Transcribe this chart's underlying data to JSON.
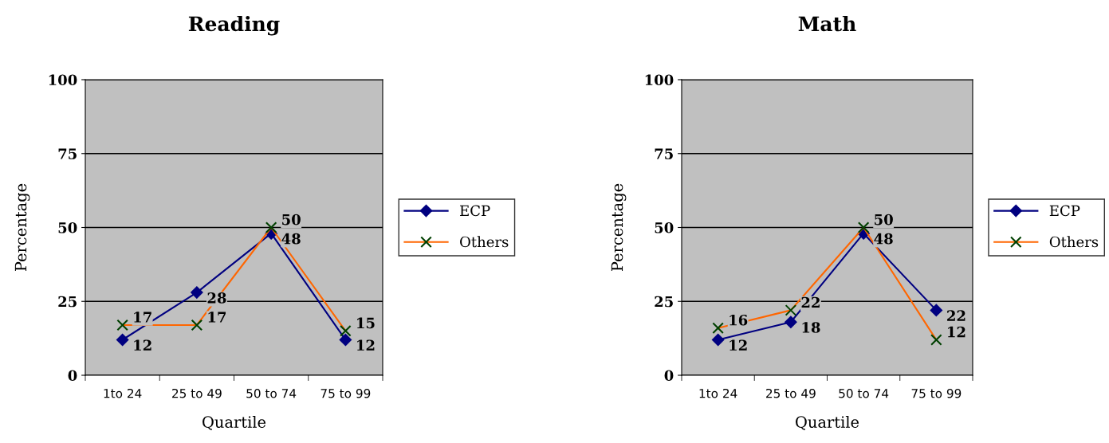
{
  "chart_data": [
    {
      "type": "line",
      "title": "Reading",
      "xlabel": "Quartile",
      "ylabel": "Percentage",
      "categories": [
        "1to 24",
        "25 to 49",
        "50 to 74",
        "75 to 99"
      ],
      "ylim": [
        0,
        100
      ],
      "yticks": [
        0,
        25,
        50,
        75,
        100
      ],
      "grid": "y",
      "legend": "right",
      "data_labels": true,
      "series": [
        {
          "name": "ECP",
          "color": "#000080",
          "marker": "diamond",
          "values": [
            12,
            28,
            48,
            12
          ]
        },
        {
          "name": "Others",
          "color": "#ff6600",
          "marker": "cross",
          "values": [
            17,
            17,
            50,
            15
          ]
        }
      ]
    },
    {
      "type": "line",
      "title": "Math",
      "xlabel": "Quartile",
      "ylabel": "Percentage",
      "categories": [
        "1to 24",
        "25 to 49",
        "50 to 74",
        "75 to 99"
      ],
      "ylim": [
        0,
        100
      ],
      "yticks": [
        0,
        25,
        50,
        75,
        100
      ],
      "grid": "y",
      "legend": "right",
      "data_labels": true,
      "series": [
        {
          "name": "ECP",
          "color": "#000080",
          "marker": "diamond",
          "values": [
            12,
            18,
            48,
            22
          ]
        },
        {
          "name": "Others",
          "color": "#ff6600",
          "marker": "cross",
          "values": [
            16,
            22,
            50,
            12
          ]
        }
      ]
    }
  ]
}
